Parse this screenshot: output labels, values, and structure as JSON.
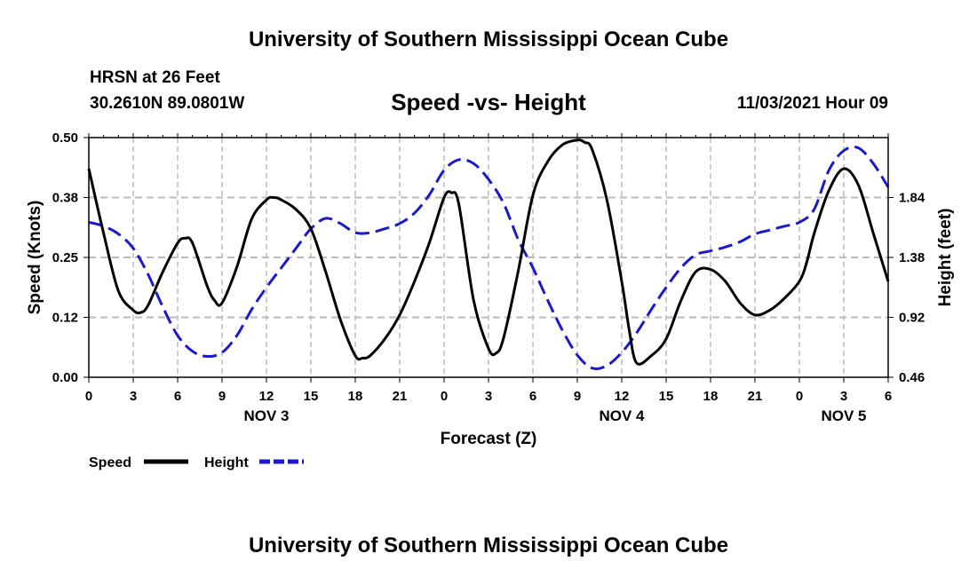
{
  "header": {
    "title_top": "University of Southern Mississippi Ocean Cube",
    "station": "HRSN at 26 Feet",
    "coords": "30.2610N  89.0801W",
    "subtitle": "Speed -vs- Height",
    "datetime": "11/03/2021 Hour 09",
    "title_bottom": "University of Southern Mississippi Ocean Cube"
  },
  "colors": {
    "speed": "#000000",
    "height": "#1a1acc",
    "grid": "#bbbbbb"
  },
  "chart_data": {
    "type": "line",
    "title": "Speed -vs- Height",
    "xlabel": "Forecast (Z)",
    "ylabel": "Speed (Knots)",
    "ylabel_right": "Height (feet)",
    "xlim": [
      0,
      54
    ],
    "ylim": [
      0,
      0.5
    ],
    "ylim_right": [
      0.46,
      2.3
    ],
    "x_ticks": [
      0,
      3,
      6,
      9,
      12,
      15,
      18,
      21,
      24,
      27,
      30,
      33,
      36,
      39,
      42,
      45,
      48,
      51,
      54
    ],
    "x_tick_labels": [
      "0",
      "3",
      "6",
      "9",
      "12",
      "15",
      "18",
      "21",
      "0",
      "3",
      "6",
      "9",
      "12",
      "15",
      "18",
      "21",
      "0",
      "3",
      "6"
    ],
    "y_ticks": [
      0,
      0.125,
      0.25,
      0.375,
      0.5
    ],
    "y_tick_labels": [
      "0.00",
      "0.12",
      "0.25",
      "0.38",
      "0.50"
    ],
    "y_ticks_right": [
      0.46,
      0.92,
      1.38,
      1.84
    ],
    "y_tick_labels_right": [
      "0.46",
      "0.92",
      "1.38",
      "1.84"
    ],
    "day_labels": [
      {
        "x": 12,
        "label": "NOV 3"
      },
      {
        "x": 36,
        "label": "NOV 4"
      },
      {
        "x": 51,
        "label": "NOV 5"
      }
    ],
    "grid": true,
    "series": [
      {
        "name": "Speed",
        "axis": "left",
        "style": "solid",
        "x": [
          0,
          1,
          2,
          3,
          3.5,
          4,
          5,
          6,
          6.5,
          7,
          8,
          8.5,
          9,
          10,
          11,
          12,
          12.5,
          13,
          14,
          15,
          16,
          17,
          18,
          18.5,
          19,
          20,
          21,
          22,
          23,
          24,
          24.5,
          25,
          26,
          27,
          27.5,
          28,
          29,
          30,
          31,
          32,
          33,
          33.5,
          34,
          35,
          36,
          36.5,
          37,
          38,
          39,
          40,
          41,
          42,
          43,
          44,
          45,
          46,
          47,
          48,
          48.5,
          49,
          50,
          51,
          52,
          53,
          54
        ],
        "values": [
          0.435,
          0.3,
          0.18,
          0.14,
          0.135,
          0.15,
          0.22,
          0.28,
          0.29,
          0.28,
          0.19,
          0.16,
          0.155,
          0.23,
          0.33,
          0.37,
          0.375,
          0.37,
          0.35,
          0.31,
          0.22,
          0.12,
          0.045,
          0.04,
          0.045,
          0.08,
          0.13,
          0.2,
          0.28,
          0.375,
          0.385,
          0.36,
          0.16,
          0.06,
          0.05,
          0.08,
          0.22,
          0.38,
          0.45,
          0.485,
          0.495,
          0.49,
          0.475,
          0.37,
          0.2,
          0.1,
          0.03,
          0.045,
          0.08,
          0.16,
          0.22,
          0.225,
          0.2,
          0.155,
          0.13,
          0.14,
          0.165,
          0.2,
          0.24,
          0.3,
          0.39,
          0.435,
          0.4,
          0.3,
          0.2
        ]
      },
      {
        "name": "Height",
        "axis": "right",
        "style": "dashed",
        "x": [
          0,
          1,
          2,
          3,
          4,
          5,
          6,
          7,
          8,
          9,
          10,
          11,
          12,
          13,
          14,
          15,
          16,
          17,
          18,
          19,
          20,
          21,
          22,
          23,
          24,
          25,
          26,
          27,
          28,
          29,
          30,
          31,
          32,
          33,
          34,
          35,
          36,
          37,
          38,
          39,
          40,
          41,
          42,
          43,
          44,
          45,
          46,
          47,
          48,
          49,
          50,
          51,
          52,
          53,
          54
        ],
        "values": [
          1.65,
          1.62,
          1.56,
          1.45,
          1.25,
          1.0,
          0.78,
          0.66,
          0.62,
          0.65,
          0.78,
          0.98,
          1.15,
          1.3,
          1.45,
          1.6,
          1.68,
          1.64,
          1.57,
          1.57,
          1.6,
          1.64,
          1.72,
          1.86,
          2.05,
          2.13,
          2.1,
          1.98,
          1.8,
          1.52,
          1.3,
          1.05,
          0.82,
          0.63,
          0.53,
          0.55,
          0.65,
          0.8,
          0.98,
          1.15,
          1.3,
          1.4,
          1.43,
          1.46,
          1.5,
          1.56,
          1.59,
          1.62,
          1.65,
          1.75,
          2.05,
          2.2,
          2.22,
          2.1,
          1.92
        ]
      }
    ],
    "legend": {
      "placement": "bottom-left",
      "entries": [
        "Speed",
        "Height"
      ]
    }
  }
}
